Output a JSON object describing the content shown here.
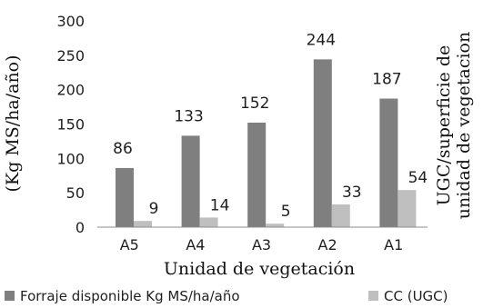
{
  "chart_data": {
    "type": "bar",
    "categories": [
      "A5",
      "A4",
      "A3",
      "A2",
      "A1"
    ],
    "series": [
      {
        "name": "Forraje disponible Kg MS/ha/año",
        "values": [
          86,
          133,
          152,
          244,
          187
        ],
        "labels": [
          "86",
          "133",
          "152",
          "244",
          "187"
        ],
        "color": "#7f7f7f"
      },
      {
        "name": "CC (UGC)",
        "values": [
          9,
          14,
          5,
          33,
          54
        ],
        "labels": [
          "9",
          "14",
          "5",
          "33",
          "54"
        ],
        "color": "#bfbfbf"
      }
    ],
    "xlabel": "Unidad de vegetación",
    "ylabel": "(Kg MS/ha/año)",
    "y2label_line1": "UGC/superficie de",
    "y2label_line2": "unidad de vegetacion",
    "ylim": [
      0,
      300
    ],
    "yticks": [
      "0",
      "50",
      "100",
      "150",
      "200",
      "250",
      "300"
    ],
    "grid": false,
    "legend_position": "bottom"
  }
}
